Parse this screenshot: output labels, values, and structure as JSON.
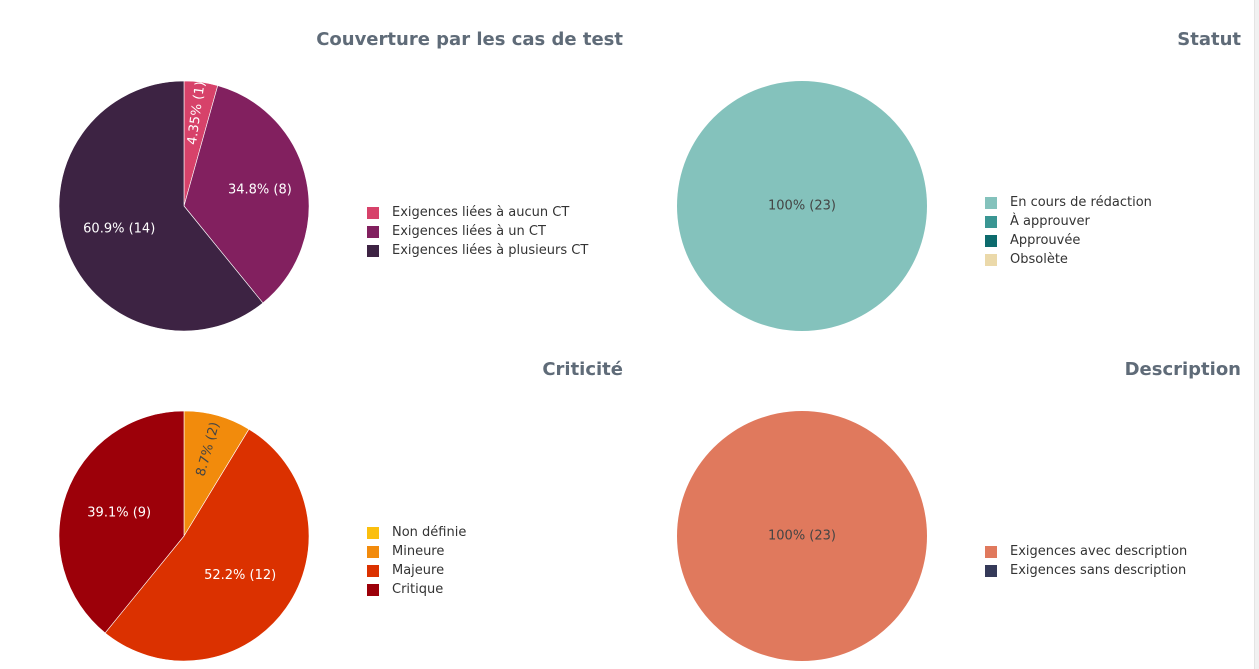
{
  "chart_data": [
    {
      "type": "pie",
      "title": "Couverture par les cas de test",
      "categories": [
        "Exigences liées à aucun CT",
        "Exigences liées à un CT",
        "Exigences liées à plusieurs CT"
      ],
      "values": [
        1,
        8,
        14
      ],
      "labels": [
        "4.35% (1)",
        "34.8% (8)",
        "60.9% (14)"
      ],
      "colors": [
        "#d7426a",
        "#82205f",
        "#3d2343"
      ],
      "legend_position": "right"
    },
    {
      "type": "pie",
      "title": "Statut",
      "categories": [
        "En cours de rédaction",
        "À approuver",
        "Approuvée",
        "Obsolète"
      ],
      "values": [
        23,
        0,
        0,
        0
      ],
      "labels": [
        "100% (23)",
        "",
        "",
        ""
      ],
      "colors": [
        "#84c2bc",
        "#3a9693",
        "#0d6b6d",
        "#ebd9aa"
      ],
      "legend_position": "right"
    },
    {
      "type": "pie",
      "title": "Criticité",
      "categories": [
        "Non définie",
        "Mineure",
        "Majeure",
        "Critique"
      ],
      "values": [
        0,
        2,
        12,
        9
      ],
      "labels": [
        "",
        "8.7% (2)",
        "52.2% (12)",
        "39.1% (9)"
      ],
      "colors": [
        "#fbbf0e",
        "#f28b0c",
        "#db3100",
        "#9c0009"
      ],
      "legend_position": "right"
    },
    {
      "type": "pie",
      "title": "Description",
      "categories": [
        "Exigences avec description",
        "Exigences sans description"
      ],
      "values": [
        23,
        0
      ],
      "labels": [
        "100% (23)",
        ""
      ],
      "colors": [
        "#e0795d",
        "#353a59"
      ],
      "legend_position": "right"
    }
  ]
}
